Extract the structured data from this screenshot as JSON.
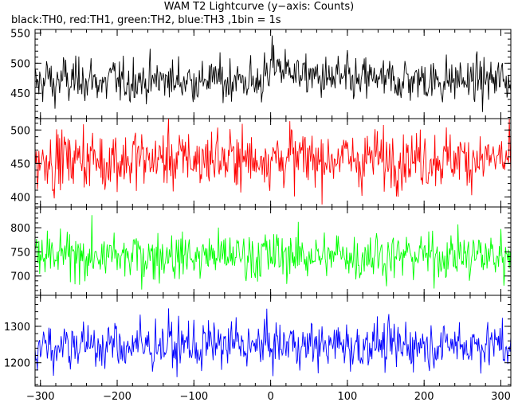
{
  "title": "WAM T2 Lightcurve (y−axis: Counts)",
  "subtitle": "black:TH0, red:TH1, green:TH2, blue:TH3 ,1bin = 1s",
  "chart_data": {
    "type": "line",
    "title": "WAM T2 Lightcurve (y−axis: Counts)",
    "subtitle": "black:TH0, red:TH1, green:TH2, blue:TH3 ,1bin = 1s",
    "x": {
      "range": [
        -307,
        313
      ],
      "ticks": [
        -300,
        -200,
        -100,
        0,
        100,
        200,
        300
      ],
      "tick_labels": [
        "−300",
        "−200",
        "−100",
        "0",
        "100",
        "200",
        "300"
      ]
    },
    "ylabel": "Counts",
    "bin_seconds": 1,
    "panels": [
      {
        "series": "TH0",
        "color": "#000000",
        "ylim": [
          408,
          556
        ],
        "yticks": [
          450,
          500,
          550
        ],
        "ytick_labels": [
          "450",
          "500",
          "550"
        ],
        "mean": 468,
        "noise_sd": 21,
        "values": [
          470,
          452,
          486,
          458,
          515,
          472,
          430,
          494,
          461,
          505,
          478,
          440,
          499,
          462,
          487,
          526,
          445,
          471,
          508,
          455,
          483,
          466,
          431,
          497,
          474,
          512,
          449,
          480,
          459,
          492,
          437,
          518,
          468,
          501,
          454,
          476,
          489,
          443,
          510,
          465,
          486,
          458,
          531,
          472,
          447,
          495,
          463,
          479,
          504,
          451,
          484,
          469,
          438,
          509,
          476,
          492,
          457,
          521,
          466,
          483,
          448,
          497,
          471,
          513,
          460,
          487,
          452,
          502,
          478,
          441,
          494,
          467,
          519,
          455,
          481,
          472,
          506,
          449,
          488,
          463,
          537,
          470,
          456,
          499,
          483,
          446,
          511,
          468,
          492,
          459,
          476,
          503,
          444,
          487,
          471,
          516,
          462,
          480,
          498,
          453,
          485,
          468,
          442,
          507,
          474,
          495,
          458,
          523,
          466,
          482,
          451,
          500,
          477,
          462,
          489,
          446,
          512,
          470,
          484,
          457,
          496,
          473,
          509,
          448,
          485,
          464,
          491,
          475,
          452,
          503,
          468,
          487,
          459,
          515,
          471,
          481,
          446,
          498,
          466,
          510,
          455,
          484,
          472,
          493,
          461,
          478,
          505,
          449,
          487,
          468
        ],
        "feature": {
          "type": "step",
          "at": 0,
          "height": 35,
          "decay_s": 30
        }
      },
      {
        "series": "TH1",
        "color": "#ff0000",
        "ylim": [
          385,
          517
        ],
        "yticks": [
          400,
          450,
          500
        ],
        "ytick_labels": [
          "400",
          "450",
          "500"
        ],
        "mean": 452,
        "noise_sd": 25,
        "values": [
          455,
          431,
          478,
          442,
          499,
          461,
          410,
          482,
          447,
          506,
          470,
          423,
          491,
          452,
          478,
          514,
          428,
          460,
          497,
          439,
          472,
          455,
          406,
          488,
          463,
          505,
          435,
          470,
          446,
          484,
          418,
          510,
          456,
          492,
          440,
          465,
          480,
          426,
          501,
          453,
          476,
          444,
          512,
          460,
          431,
          486,
          449,
          468,
          495,
          437,
          474,
          457,
          415,
          500,
          464,
          483,
          443,
          509,
          454,
          473,
          432,
          488,
          459,
          504,
          447,
          477,
          436,
          494,
          466,
          422,
          485,
          455,
          511,
          439,
          471,
          460,
          497,
          433,
          478,
          450,
          508,
          457,
          442,
          490,
          472,
          429,
          502,
          455,
          483,
          445,
          466,
          494,
          427,
          477,
          459,
          507,
          448,
          470,
          489,
          438,
          475,
          456,
          420,
          498,
          462,
          486,
          444,
          512,
          453,
          472,
          434,
          491,
          465,
          449,
          480,
          431,
          503,
          457,
          474,
          443,
          487,
          461,
          500,
          432,
          475,
          452,
          482,
          463,
          437,
          494,
          456,
          478,
          445,
          506,
          458,
          471,
          430,
          489,
          453,
          501,
          441,
          474,
          460,
          484,
          448,
          467,
          496,
          434,
          478,
          456
        ],
        "feature": null
      },
      {
        "series": "TH2",
        "color": "#00ff00",
        "ylim": [
          660,
          843
        ],
        "yticks": [
          700,
          750,
          800
        ],
        "ytick_labels": [
          "700",
          "750",
          "800"
        ],
        "mean": 735,
        "noise_sd": 28,
        "values": [
          741,
          712,
          769,
          726,
          794,
          752,
          688,
          775,
          733,
          801,
          761,
          700,
          786,
          738,
          770,
          812,
          705,
          746,
          790,
          719,
          764,
          741,
          680,
          782,
          749,
          806,
          715,
          761,
          728,
          777,
          694,
          809,
          742,
          787,
          722,
          754,
          772,
          703,
          796,
          739,
          768,
          727,
          818,
          749,
          710,
          779,
          734,
          758,
          791,
          717,
          765,
          743,
          692,
          798,
          751,
          776,
          725,
          808,
          740,
          764,
          709,
          783,
          746,
          800,
          731,
          769,
          714,
          789,
          755,
          698,
          778,
          742,
          810,
          719,
          761,
          748,
          793,
          711,
          770,
          735,
          820,
          744,
          721,
          784,
          762,
          703,
          799,
          741,
          776,
          727,
          753,
          790,
          700,
          769,
          745,
          806,
          730,
          759,
          783,
          716,
          765,
          742,
          694,
          795,
          749,
          780,
          726,
          810,
          739,
          763,
          710,
          785,
          752,
          733,
          774,
          706,
          800,
          743,
          767,
          725,
          781,
          748,
          797,
          708,
          767,
          738,
          776,
          751,
          713,
          790,
          742,
          772,
          727,
          804,
          745,
          760,
          705,
          784,
          739,
          798,
          721,
          765,
          747,
          779,
          731,
          756,
          792,
          709,
          770,
          741
        ],
        "feature": null
      },
      {
        "series": "TH3",
        "color": "#0000ff",
        "ylim": [
          1136,
          1385
        ],
        "yticks": [
          1200,
          1300
        ],
        "ytick_labels": [
          "1200",
          "1300"
        ],
        "mean": 1240,
        "noise_sd": 36,
        "values": [
          1248,
          1209,
          1286,
          1226,
          1318,
          1262,
          1175,
          1297,
          1237,
          1330,
          1272,
          1190,
          1310,
          1243,
          1288,
          1345,
          1196,
          1253,
          1315,
          1216,
          1278,
          1248,
          1163,
          1303,
          1257,
          1336,
          1207,
          1271,
          1228,
          1294,
          1181,
          1340,
          1249,
          1310,
          1220,
          1263,
          1287,
          1193,
          1322,
          1244,
          1283,
          1227,
          1352,
          1257,
          1200,
          1299,
          1238,
          1268,
          1314,
          1213,
          1276,
          1250,
          1171,
          1327,
          1260,
          1294,
          1224,
          1338,
          1246,
          1274,
          1199,
          1305,
          1254,
          1329,
          1233,
          1282,
          1209,
          1313,
          1266,
          1182,
          1298,
          1249,
          1342,
          1215,
          1272,
          1256,
          1318,
          1202,
          1283,
          1240,
          1355,
          1251,
          1219,
          1304,
          1274,
          1189,
          1325,
          1248,
          1294,
          1227,
          1263,
          1315,
          1184,
          1282,
          1252,
          1336,
          1231,
          1270,
          1303,
          1210,
          1276,
          1249,
          1176,
          1320,
          1258,
          1299,
          1224,
          1343,
          1245,
          1273,
          1198,
          1307,
          1262,
          1235,
          1291,
          1192,
          1328,
          1251,
          1282,
          1223,
          1300,
          1256,
          1322,
          1197,
          1281,
          1242,
          1296,
          1261,
          1206,
          1314,
          1249,
          1289,
          1228,
          1336,
          1252,
          1271,
          1194,
          1305,
          1246,
          1325,
          1217,
          1276,
          1255,
          1297,
          1232,
          1266,
          1318,
          1201,
          1283,
          1247
        ],
        "feature": null
      }
    ]
  }
}
